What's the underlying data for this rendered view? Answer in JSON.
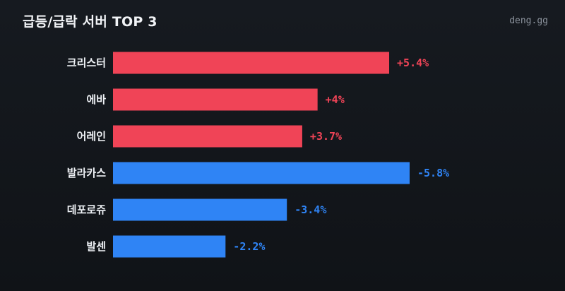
{
  "header": {
    "title": "급등/급락 서버 TOP 3",
    "brand": "deng.gg"
  },
  "colors": {
    "up": "#f04457",
    "down": "#2f84f5"
  },
  "chart_data": {
    "type": "bar",
    "orientation": "horizontal",
    "title": "급등/급락 서버 TOP 3",
    "categories": [
      "크리스터",
      "에바",
      "어레인",
      "발라카스",
      "데포로쥬",
      "발센"
    ],
    "values": [
      5.4,
      4,
      3.7,
      -5.8,
      -3.4,
      -2.2
    ],
    "value_labels": [
      "+5.4%",
      "+4%",
      "+3.7%",
      "-5.8%",
      "-3.4%",
      "-2.2%"
    ],
    "unit": "%",
    "xlabel": "",
    "ylabel": "",
    "grid": false,
    "legend": "none"
  }
}
